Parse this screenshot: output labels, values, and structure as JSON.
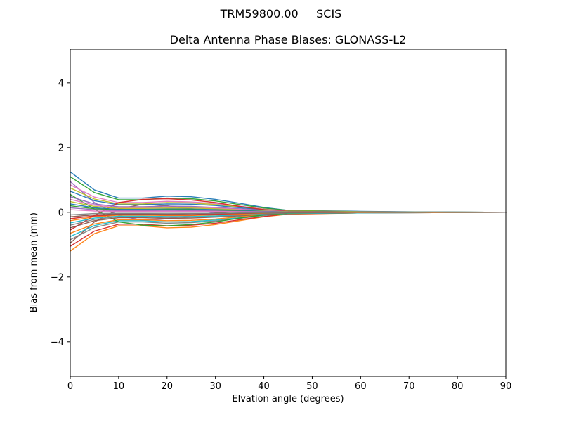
{
  "figure": {
    "background": "#ffffff",
    "spine_color": "#000000",
    "tick_color": "#000000"
  },
  "chart_data": {
    "type": "line",
    "suptitle": "TRM59800.00     SCIS",
    "title": "Delta Antenna Phase Biases: GLONASS-L2",
    "xlabel": "Elvation angle (degrees)",
    "ylabel": "Bias from mean (mm)",
    "xlim": [
      0,
      90
    ],
    "ylim": [
      -5.07,
      5.04
    ],
    "xticks": [
      0,
      10,
      20,
      30,
      40,
      50,
      60,
      70,
      80,
      90
    ],
    "yticks": [
      -4,
      -2,
      0,
      2,
      4
    ],
    "ytick_labels": [
      "−4",
      "−2",
      "0",
      "2",
      "4"
    ],
    "grid": false,
    "legend": "none",
    "palette": [
      "#1f77b4",
      "#ff7f0e",
      "#2ca02c",
      "#d62728",
      "#9467bd",
      "#8c564b",
      "#e377c2",
      "#7f7f7f",
      "#bcbd22",
      "#17becf"
    ],
    "x": [
      0,
      5,
      10,
      15,
      20,
      25,
      30,
      35,
      40,
      45,
      60,
      75,
      90
    ],
    "series": [
      {
        "name": "line-01",
        "values": [
          1.25,
          0.69,
          0.44,
          0.44,
          0.5,
          0.48,
          0.4,
          0.28,
          0.15,
          0.06,
          0.03,
          0.01,
          0.0
        ]
      },
      {
        "name": "line-02",
        "values": [
          -1.2,
          -0.66,
          -0.42,
          -0.42,
          -0.48,
          -0.46,
          -0.38,
          -0.26,
          -0.14,
          -0.06,
          -0.02,
          -0.01,
          0.0
        ]
      },
      {
        "name": "line-03",
        "values": [
          1.1,
          0.61,
          0.39,
          0.39,
          0.44,
          0.42,
          0.35,
          0.24,
          0.13,
          0.06,
          0.02,
          0.01,
          0.0
        ]
      },
      {
        "name": "line-04",
        "values": [
          -1.05,
          -0.58,
          -0.37,
          -0.37,
          -0.42,
          -0.4,
          -0.34,
          -0.23,
          -0.13,
          -0.05,
          -0.02,
          -0.01,
          0.0
        ]
      },
      {
        "name": "line-05",
        "values": [
          0.95,
          0.3,
          -0.1,
          -0.25,
          -0.2,
          -0.1,
          0.0,
          0.05,
          0.04,
          0.02,
          0.01,
          0.0,
          0.0
        ]
      },
      {
        "name": "line-06",
        "values": [
          -0.95,
          -0.3,
          0.1,
          0.25,
          0.2,
          0.1,
          0.0,
          -0.05,
          -0.04,
          -0.02,
          -0.01,
          0.0,
          0.0
        ]
      },
      {
        "name": "line-07",
        "values": [
          0.85,
          0.47,
          0.3,
          0.3,
          0.34,
          0.32,
          0.27,
          0.19,
          0.1,
          0.04,
          0.02,
          0.01,
          0.0
        ]
      },
      {
        "name": "line-08",
        "values": [
          -0.85,
          -0.47,
          -0.3,
          -0.3,
          -0.34,
          -0.32,
          -0.27,
          -0.19,
          -0.1,
          -0.04,
          -0.02,
          -0.01,
          0.0
        ]
      },
      {
        "name": "line-09",
        "values": [
          0.75,
          0.41,
          0.26,
          0.26,
          0.3,
          0.29,
          0.24,
          0.17,
          0.09,
          0.04,
          0.02,
          0.01,
          0.0
        ]
      },
      {
        "name": "line-10",
        "values": [
          -0.75,
          -0.41,
          -0.26,
          -0.26,
          -0.3,
          -0.29,
          -0.24,
          -0.17,
          -0.09,
          -0.04,
          -0.02,
          -0.01,
          0.0
        ]
      },
      {
        "name": "line-11",
        "values": [
          0.65,
          0.36,
          0.23,
          0.23,
          0.26,
          0.25,
          0.21,
          0.14,
          0.08,
          0.03,
          0.01,
          0.01,
          0.0
        ]
      },
      {
        "name": "line-12",
        "values": [
          -0.65,
          -0.36,
          -0.23,
          -0.23,
          -0.26,
          -0.25,
          -0.21,
          -0.14,
          -0.08,
          -0.03,
          -0.01,
          -0.01,
          0.0
        ]
      },
      {
        "name": "line-13",
        "values": [
          0.55,
          0.1,
          -0.3,
          -0.4,
          -0.42,
          -0.38,
          -0.3,
          -0.18,
          -0.08,
          -0.03,
          -0.01,
          0.0,
          0.0
        ]
      },
      {
        "name": "line-14",
        "values": [
          -0.55,
          -0.1,
          0.3,
          0.4,
          0.42,
          0.38,
          0.3,
          0.18,
          0.08,
          0.03,
          0.01,
          0.0,
          0.0
        ]
      },
      {
        "name": "line-15",
        "values": [
          0.48,
          0.26,
          0.17,
          0.17,
          0.19,
          0.18,
          0.15,
          0.11,
          0.06,
          0.02,
          0.01,
          0.0,
          0.0
        ]
      },
      {
        "name": "line-16",
        "values": [
          -0.48,
          -0.26,
          -0.17,
          -0.17,
          -0.19,
          -0.18,
          -0.15,
          -0.11,
          -0.06,
          -0.02,
          -0.01,
          0.0,
          0.0
        ]
      },
      {
        "name": "line-17",
        "values": [
          0.4,
          0.22,
          0.14,
          0.14,
          0.16,
          0.15,
          0.13,
          0.09,
          0.05,
          0.02,
          0.01,
          0.0,
          0.0
        ]
      },
      {
        "name": "line-18",
        "values": [
          -0.4,
          -0.22,
          -0.14,
          -0.14,
          -0.16,
          -0.15,
          -0.13,
          -0.09,
          -0.05,
          -0.02,
          -0.01,
          0.0,
          0.0
        ]
      },
      {
        "name": "line-19",
        "values": [
          0.33,
          0.18,
          0.12,
          0.12,
          0.13,
          0.13,
          0.11,
          0.07,
          0.04,
          0.02,
          0.01,
          0.0,
          0.0
        ]
      },
      {
        "name": "line-20",
        "values": [
          -0.33,
          -0.18,
          -0.12,
          -0.12,
          -0.13,
          -0.13,
          -0.11,
          -0.07,
          -0.04,
          -0.02,
          -0.01,
          0.0,
          0.0
        ]
      },
      {
        "name": "line-21",
        "values": [
          0.26,
          0.14,
          0.09,
          0.09,
          0.1,
          0.1,
          0.08,
          0.06,
          0.03,
          0.01,
          0.01,
          0.0,
          0.0
        ]
      },
      {
        "name": "line-22",
        "values": [
          -0.26,
          -0.14,
          -0.09,
          -0.09,
          -0.1,
          -0.1,
          -0.08,
          -0.06,
          -0.03,
          -0.01,
          -0.01,
          0.0,
          0.0
        ]
      },
      {
        "name": "line-23",
        "values": [
          0.2,
          0.11,
          0.07,
          0.07,
          0.08,
          0.08,
          0.06,
          0.04,
          0.02,
          0.01,
          0.0,
          0.0,
          0.0
        ]
      },
      {
        "name": "line-24",
        "values": [
          -0.2,
          -0.11,
          -0.07,
          -0.07,
          -0.08,
          -0.08,
          -0.06,
          -0.04,
          -0.02,
          -0.01,
          0.0,
          0.0,
          0.0
        ]
      },
      {
        "name": "line-25",
        "values": [
          0.14,
          0.08,
          0.05,
          0.05,
          0.06,
          0.05,
          0.04,
          0.03,
          0.02,
          0.01,
          0.0,
          0.0,
          0.0
        ]
      },
      {
        "name": "line-26",
        "values": [
          -0.14,
          -0.08,
          -0.05,
          -0.05,
          -0.06,
          -0.05,
          -0.04,
          -0.03,
          -0.02,
          -0.01,
          0.0,
          0.0,
          0.0
        ]
      },
      {
        "name": "line-27",
        "values": [
          0.08,
          0.04,
          0.03,
          0.03,
          0.03,
          0.03,
          0.03,
          0.02,
          0.01,
          0.0,
          0.0,
          0.0,
          0.0
        ]
      },
      {
        "name": "line-28",
        "values": [
          -0.08,
          -0.04,
          -0.03,
          -0.03,
          -0.03,
          -0.03,
          -0.03,
          -0.02,
          -0.01,
          0.0,
          0.0,
          0.0,
          0.0
        ]
      }
    ]
  }
}
